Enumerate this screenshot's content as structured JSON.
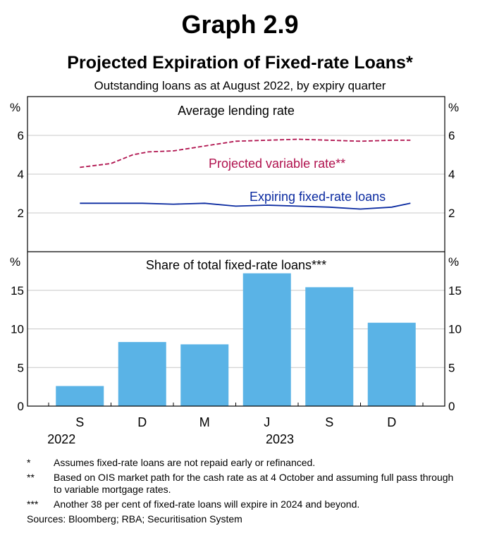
{
  "header": {
    "graph_number": "Graph 2.9",
    "title": "Projected Expiration of Fixed-rate Loans*",
    "subtitle": "Outstanding loans as at August 2022, by expiry quarter"
  },
  "colors": {
    "variable": "#b0124e",
    "fixed": "#0a2aa0",
    "bars": "#5ab3e6",
    "grid": "#c8c8c8"
  },
  "chart_data": [
    {
      "type": "line",
      "title": "Average lending rate",
      "unit_left": "%",
      "unit_right": "%",
      "ylim": [
        0,
        8
      ],
      "yticks": [
        2,
        4,
        6
      ],
      "x_quarter_range": [
        0,
        5.5
      ],
      "series": [
        {
          "name": "Projected variable rate**",
          "style": "dashed",
          "x": [
            0,
            0.5,
            0.85,
            1.1,
            1.5,
            2.0,
            2.5,
            3.0,
            3.5,
            4.0,
            4.5,
            5.0,
            5.3
          ],
          "values": [
            4.35,
            4.55,
            5.0,
            5.15,
            5.2,
            5.45,
            5.7,
            5.75,
            5.8,
            5.75,
            5.7,
            5.75,
            5.75
          ]
        },
        {
          "name": "Expiring fixed-rate loans",
          "style": "solid",
          "x": [
            0,
            0.5,
            1.0,
            1.5,
            2.0,
            2.5,
            3.0,
            3.5,
            4.0,
            4.5,
            5.0,
            5.3
          ],
          "values": [
            2.5,
            2.5,
            2.5,
            2.45,
            2.5,
            2.35,
            2.4,
            2.35,
            2.3,
            2.2,
            2.3,
            2.5
          ]
        }
      ]
    },
    {
      "type": "bar",
      "title": "Share of total fixed-rate loans***",
      "unit_left": "%",
      "unit_right": "%",
      "ylim": [
        0,
        20
      ],
      "yticks": [
        0,
        5,
        10,
        15
      ],
      "categories": [
        "S",
        "D",
        "M",
        "J",
        "S",
        "D"
      ],
      "values": [
        2.6,
        8.3,
        8.0,
        17.2,
        15.4,
        10.8
      ],
      "year_labels": [
        {
          "label": "2022",
          "position": 0
        },
        {
          "label": "2023",
          "position": 3.5
        }
      ]
    }
  ],
  "footnotes": [
    {
      "marker": "*",
      "text": "Assumes fixed-rate loans are not repaid early or refinanced."
    },
    {
      "marker": "**",
      "text": "Based on OIS market path for the cash rate as at 4 October and assuming full pass through to variable mortgage rates."
    },
    {
      "marker": "***",
      "text": "Another 38 per cent of fixed-rate loans will expire in 2024 and beyond."
    }
  ],
  "sources": "Sources: Bloomberg; RBA; Securitisation System"
}
